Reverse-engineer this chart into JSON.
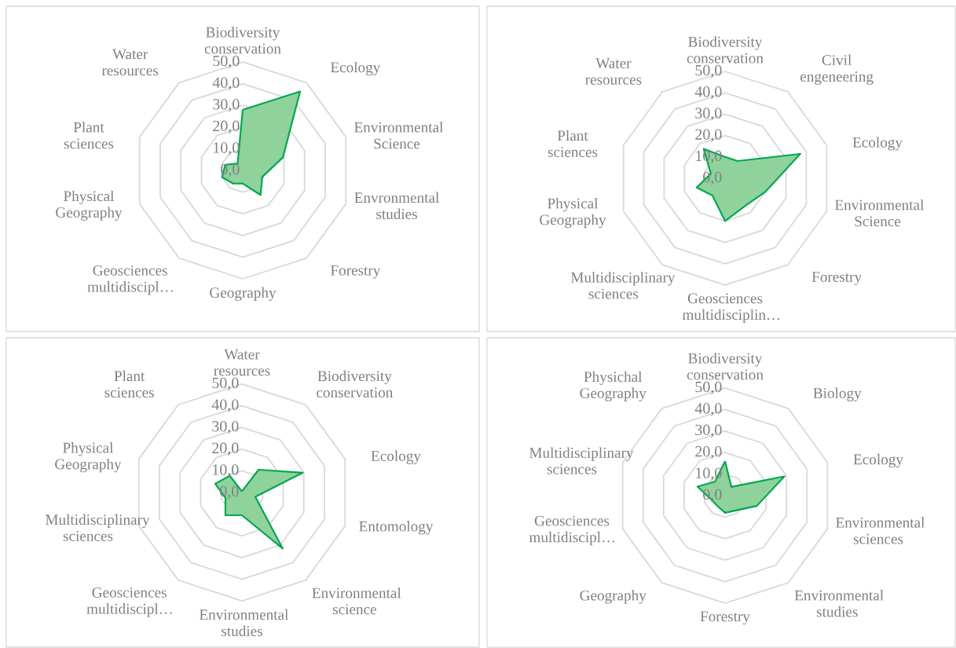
{
  "chart_data": [
    {
      "type": "radar",
      "categories": [
        "Biodiversity conservation",
        "Ecology",
        "Environmental Science",
        "Envronmental studies",
        "Forestry",
        "Geography",
        "Geosciences multidiscipl…",
        "Physical Geography",
        "Plant sciences",
        "Water resources"
      ],
      "series": [
        {
          "color": "#00a651",
          "values": [
            28,
            45,
            19.5,
            9.5,
            14,
            6,
            7.5,
            10,
            8.5,
            4
          ]
        }
      ],
      "ylim": [
        0,
        50
      ],
      "yticks": [
        {
          "value": 0,
          "label": "0,0"
        },
        {
          "value": 10,
          "label": "10,0"
        },
        {
          "value": 20,
          "label": "20,0"
        },
        {
          "value": 30,
          "label": "30,0"
        },
        {
          "value": 40,
          "label": "40,0"
        },
        {
          "value": 50,
          "label": "50,0"
        }
      ],
      "grid": true
    },
    {
      "type": "radar",
      "categories": [
        "Biodiversity conservation",
        "Civil engeneering",
        "Ecology",
        "Environmental Science",
        "Forestry",
        "Geosciences multidisciplin…",
        "Multidisciplinary sciences",
        "Physical Geography",
        "Plant sciences",
        "Water resources"
      ],
      "series": [
        {
          "color": "#00a651",
          "values": [
            10,
            10,
            37,
            20,
            16,
            20,
            10,
            14,
            7,
            17
          ]
        }
      ],
      "ylim": [
        0,
        50
      ],
      "yticks": [
        {
          "value": 0,
          "label": "0,0"
        },
        {
          "value": 10,
          "label": "10,0"
        },
        {
          "value": 20,
          "label": "20,0"
        },
        {
          "value": 30,
          "label": "30,0"
        },
        {
          "value": 40,
          "label": "40,0"
        },
        {
          "value": 50,
          "label": "50,0"
        }
      ],
      "grid": true
    },
    {
      "type": "radar",
      "categories": [
        "Water resources",
        "Biodiversity conservation",
        "Ecology",
        "Entomology",
        "Environmental science",
        "Environmental studies",
        "Geosciences multidiscipl…",
        "Multidisciplinary sciences",
        "Physical Geography",
        "Plant sciences"
      ],
      "series": [
        {
          "color": "#00a651",
          "values": [
            0.5,
            13,
            29.5,
            6.5,
            32,
            10.5,
            13,
            8,
            13,
            9.5
          ]
        }
      ],
      "ylim": [
        0,
        50
      ],
      "yticks": [
        {
          "value": 0,
          "label": "0,0"
        },
        {
          "value": 10,
          "label": "10,0"
        },
        {
          "value": 20,
          "label": "20,0"
        },
        {
          "value": 30,
          "label": "30,0"
        },
        {
          "value": 40,
          "label": "40,0"
        },
        {
          "value": 50,
          "label": "50,0"
        }
      ],
      "grid": true
    },
    {
      "type": "radar",
      "categories": [
        "Biodiversity conservation",
        "Biology",
        "Ecology",
        "Environmental sciences",
        "Environmental studies",
        "Forestry",
        "Geography",
        "Geosciences multidiscipl…",
        "Multidisciplinary sciences",
        "Physichal Geography"
      ],
      "series": [
        {
          "color": "#00a651",
          "values": [
            16,
            5,
            29,
            15.5,
            8.5,
            8,
            6,
            6.5,
            13.5,
            8
          ]
        }
      ],
      "ylim": [
        0,
        50
      ],
      "yticks": [
        {
          "value": 0,
          "label": "0,0"
        },
        {
          "value": 10,
          "label": "10,0"
        },
        {
          "value": 20,
          "label": "20,0"
        },
        {
          "value": 30,
          "label": "30,0"
        },
        {
          "value": 40,
          "label": "40,0"
        },
        {
          "value": 50,
          "label": "50,0"
        }
      ],
      "grid": true
    }
  ]
}
